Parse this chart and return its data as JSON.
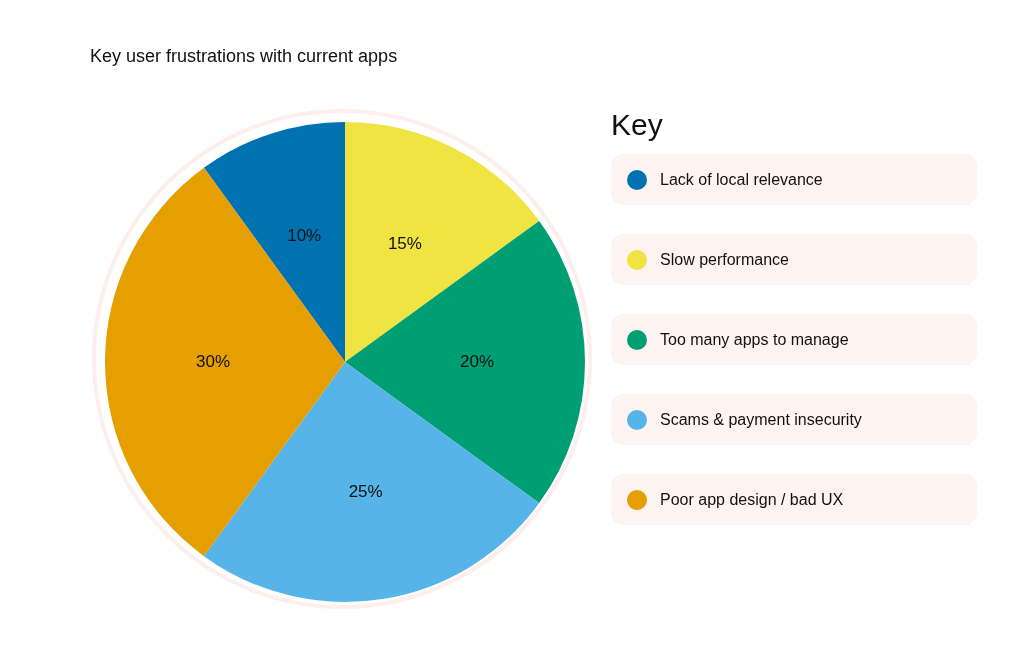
{
  "chart_data": {
    "type": "pie",
    "title": "Key user frustrations with current apps",
    "legend_title": "Key",
    "legend": "right",
    "categories": [
      "Lack of local relevance",
      "Slow performance",
      "Too many apps to manage",
      "Scams & payment insecurity",
      "Poor app design / bad UX"
    ],
    "values": [
      10,
      15,
      20,
      25,
      30
    ],
    "value_labels": [
      "10%",
      "15%",
      "20%",
      "25%",
      "30%"
    ],
    "colors": [
      "#0072b2",
      "#f0e442",
      "#009e73",
      "#56b4e9",
      "#e69f00"
    ]
  }
}
